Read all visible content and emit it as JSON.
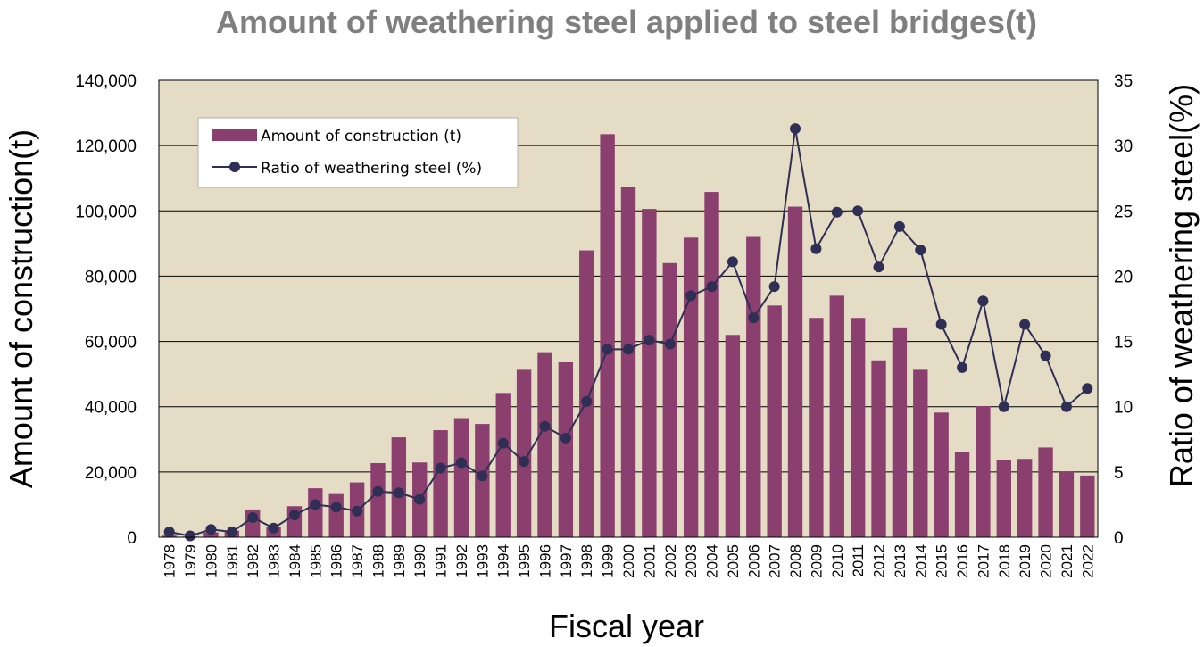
{
  "chart_data": {
    "type": "bar",
    "title": "Amount of weathering steel applied to steel bridges(t)",
    "xlabel": "Fiscal year",
    "ylabel": "Amount of construction(t)",
    "y2label": "Ratio of weathering steel(%)",
    "categories": [
      "1978",
      "1979",
      "1980",
      "1981",
      "1982",
      "1983",
      "1984",
      "1985",
      "1986",
      "1987",
      "1988",
      "1989",
      "1990",
      "1991",
      "1992",
      "1993",
      "1994",
      "1995",
      "1996",
      "1997",
      "1998",
      "1999",
      "2000",
      "2001",
      "2002",
      "2003",
      "2004",
      "2005",
      "2006",
      "2007",
      "2008",
      "2009",
      "2010",
      "2011",
      "2012",
      "2013",
      "2014",
      "2015",
      "2016",
      "2017",
      "2018",
      "2019",
      "2020",
      "2021",
      "2022"
    ],
    "ylim": [
      0,
      140000
    ],
    "y2lim": [
      0,
      35
    ],
    "yticks": [
      "0",
      "20,000",
      "40,000",
      "60,000",
      "80,000",
      "100,000",
      "120,000",
      "140,000"
    ],
    "y2ticks": [
      "0",
      "5",
      "10",
      "15",
      "20",
      "25",
      "30",
      "35"
    ],
    "grid": true,
    "legend_position": "top-left",
    "colors": {
      "bar": "#8b3f6f",
      "line": "#2f2f55",
      "plot_bg": "#e5dcc6",
      "title": "#7f7f7f"
    },
    "series": [
      {
        "name": "Amount of construction (t)",
        "type": "bar",
        "axis": "left",
        "values": [
          500,
          200,
          1500,
          2000,
          8500,
          3000,
          9500,
          15000,
          13500,
          16800,
          22700,
          30600,
          22900,
          32800,
          36500,
          34700,
          44200,
          51300,
          56700,
          53600,
          87900,
          123500,
          107300,
          100600,
          84000,
          91800,
          105800,
          62000,
          92000,
          71000,
          101300,
          67200,
          74000,
          67200,
          54200,
          64300,
          51300,
          38200,
          26000,
          40200,
          23600,
          24000,
          27500,
          20000,
          18900
        ]
      },
      {
        "name": "Ratio of weathering steel (%)",
        "type": "line",
        "axis": "right",
        "values": [
          0.4,
          0.1,
          0.6,
          0.4,
          1.5,
          0.7,
          1.7,
          2.5,
          2.3,
          2.0,
          3.5,
          3.4,
          2.9,
          5.3,
          5.7,
          4.7,
          7.2,
          5.8,
          8.5,
          7.6,
          10.4,
          14.4,
          14.4,
          15.1,
          14.8,
          18.5,
          19.2,
          21.1,
          16.8,
          19.2,
          31.3,
          22.1,
          24.9,
          25.0,
          20.7,
          23.8,
          22.0,
          16.3,
          13.0,
          18.1,
          10.0,
          16.3,
          13.9,
          10.0,
          11.4
        ]
      }
    ]
  }
}
